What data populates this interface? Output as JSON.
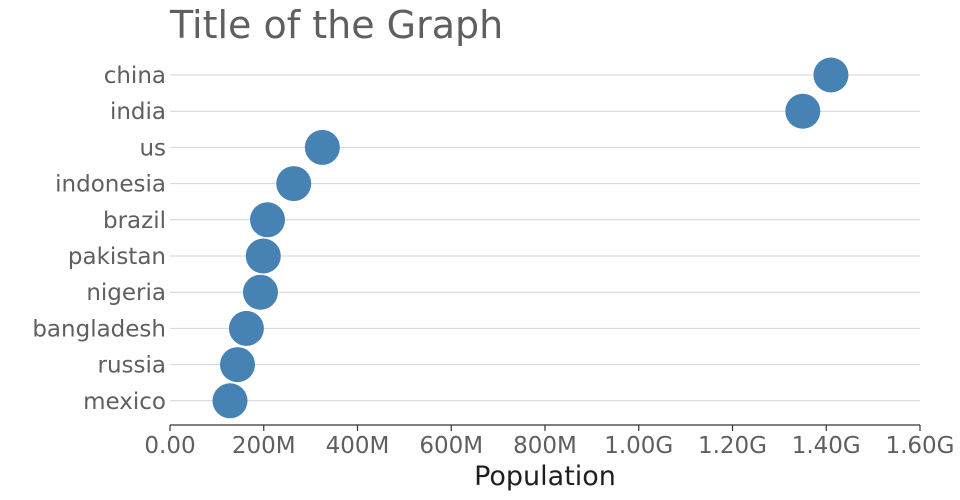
{
  "chart_data": {
    "type": "scatter",
    "title": "Title of the Graph",
    "xlabel": "Population",
    "ylabel": "",
    "xlim": [
      0,
      1600000000
    ],
    "grid": "horizontal",
    "colors": {
      "marker": "#4682b4",
      "text": "#5f5f5f",
      "axis_title": "#1f1f1f",
      "grid": "#d4d4d4"
    },
    "x_ticks": [
      0,
      200000000,
      400000000,
      600000000,
      800000000,
      1000000000,
      1200000000,
      1400000000,
      1600000000
    ],
    "x_tick_labels": [
      "0.00",
      "200M",
      "400M",
      "600M",
      "800M",
      "1.00G",
      "1.20G",
      "1.40G",
      "1.60G"
    ],
    "categories": [
      "china",
      "india",
      "us",
      "indonesia",
      "brazil",
      "pakistan",
      "nigeria",
      "bangladesh",
      "russia",
      "mexico"
    ],
    "values": [
      1410000000,
      1350000000,
      325000000,
      264000000,
      208000000,
      199000000,
      193000000,
      163000000,
      144000000,
      128000000
    ]
  }
}
